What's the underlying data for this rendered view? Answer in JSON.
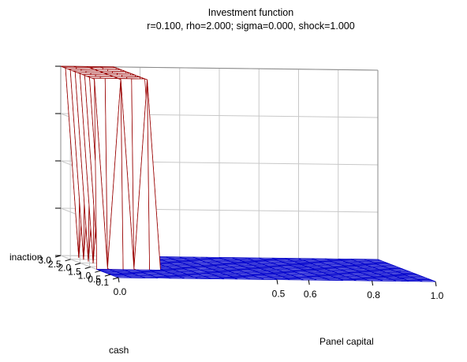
{
  "chart_data": {
    "type": "surface3d",
    "title": "Investment function",
    "subtitle": "r=0.100, rho=2.000; sigma=0.000, shock=1.000",
    "xlabel": "Panel capital",
    "ylabel": "cash",
    "zlabel": "",
    "x_ticks": [
      "0.0",
      "0.5",
      "0.6",
      "0.8",
      "1.0"
    ],
    "x_tick_values": [
      0.0,
      0.5,
      0.6,
      0.8,
      1.0
    ],
    "y_ticks": [
      "0.1",
      "0.5",
      "1.0",
      "1.5",
      "2.0",
      "2.5",
      "3.0"
    ],
    "y_tick_values": [
      0.1,
      0.5,
      1.0,
      1.5,
      2.0,
      2.5,
      3.0
    ],
    "z_tick_labels": [
      "inaction"
    ],
    "xlim": [
      0.0,
      1.0
    ],
    "ylim": [
      0.1,
      3.0
    ],
    "grid": true,
    "mesh_colors": {
      "low": "#0000cc",
      "high": "#990000"
    },
    "surface": {
      "x_count": 25,
      "y_count": 25,
      "base_value": 0,
      "peak_value": 1,
      "peak_region": {
        "x_max": 0.2,
        "y_min": 1.3
      },
      "spiky_columns_x": [
        0.0,
        0.05,
        0.1,
        0.15,
        0.2
      ]
    }
  }
}
